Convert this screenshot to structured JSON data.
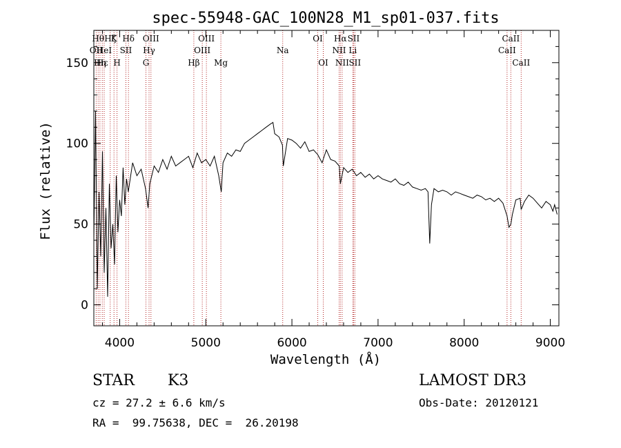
{
  "chart_data": {
    "type": "line",
    "title": "spec-55948-GAC_100N28_M1_sp01-037.fits",
    "xlabel": "Wavelength (Å)",
    "ylabel": "Flux (relative)",
    "xlim": [
      3700,
      9100
    ],
    "ylim": [
      -13,
      170
    ],
    "x_ticks": [
      4000,
      5000,
      6000,
      7000,
      8000,
      9000
    ],
    "y_ticks": [
      0,
      50,
      100,
      150
    ],
    "y_tick_labels": [
      "0",
      "50",
      "100",
      "150"
    ],
    "x_tick_labels": [
      "4000",
      "5000",
      "6000",
      "7000",
      "8000",
      "9000"
    ],
    "line_color": "#000000",
    "marker_color": "#b22222",
    "spectrum": {
      "name": "flux",
      "x": [
        3700,
        3720,
        3740,
        3760,
        3780,
        3800,
        3820,
        3840,
        3860,
        3880,
        3900,
        3920,
        3940,
        3960,
        3980,
        4000,
        4020,
        4040,
        4060,
        4080,
        4100,
        4150,
        4200,
        4250,
        4300,
        4330,
        4350,
        4400,
        4450,
        4500,
        4550,
        4600,
        4650,
        4700,
        4750,
        4800,
        4850,
        4900,
        4950,
        5000,
        5050,
        5100,
        5150,
        5180,
        5200,
        5250,
        5300,
        5350,
        5400,
        5450,
        5500,
        5550,
        5600,
        5650,
        5700,
        5750,
        5780,
        5800,
        5850,
        5890,
        5900,
        5950,
        6000,
        6050,
        6100,
        6150,
        6200,
        6250,
        6300,
        6350,
        6400,
        6450,
        6500,
        6550,
        6563,
        6600,
        6650,
        6700,
        6750,
        6800,
        6850,
        6900,
        6950,
        7000,
        7050,
        7100,
        7150,
        7200,
        7250,
        7300,
        7350,
        7400,
        7450,
        7500,
        7550,
        7580,
        7600,
        7620,
        7650,
        7700,
        7750,
        7800,
        7850,
        7900,
        7950,
        8000,
        8050,
        8100,
        8150,
        8200,
        8250,
        8300,
        8350,
        8400,
        8450,
        8498,
        8520,
        8542,
        8560,
        8600,
        8650,
        8662,
        8700,
        8750,
        8800,
        8850,
        8900,
        8950,
        9000,
        9030,
        9050,
        9080
      ],
      "values": [
        40,
        120,
        10,
        70,
        30,
        95,
        20,
        60,
        5,
        75,
        35,
        50,
        25,
        80,
        45,
        65,
        55,
        85,
        62,
        78,
        70,
        88,
        80,
        84,
        72,
        60,
        75,
        86,
        82,
        90,
        84,
        92,
        86,
        88,
        90,
        92,
        85,
        94,
        88,
        90,
        86,
        92,
        80,
        70,
        88,
        94,
        92,
        96,
        95,
        100,
        102,
        104,
        106,
        108,
        110,
        112,
        113,
        106,
        104,
        99,
        86,
        103,
        102,
        100,
        97,
        101,
        95,
        96,
        93,
        88,
        96,
        90,
        89,
        86,
        75,
        85,
        82,
        84,
        80,
        82,
        79,
        81,
        78,
        80,
        78,
        77,
        76,
        78,
        75,
        74,
        76,
        73,
        72,
        71,
        72,
        70,
        38,
        62,
        72,
        70,
        71,
        70,
        68,
        70,
        69,
        68,
        67,
        66,
        68,
        67,
        65,
        66,
        64,
        66,
        63,
        55,
        48,
        50,
        56,
        65,
        66,
        59,
        64,
        68,
        66,
        63,
        60,
        64,
        62,
        58,
        62,
        56
      ]
    },
    "line_markers": [
      {
        "wl": 3727,
        "label": "OII",
        "row": 2
      },
      {
        "wl": 3750,
        "label": "Hθ",
        "row": 1
      },
      {
        "wl": 3771,
        "label": "Hη",
        "row": 3
      },
      {
        "wl": 3798,
        "label": "Hε",
        "row": 3
      },
      {
        "wl": 3820,
        "label": "HeI",
        "row": 2
      },
      {
        "wl": 3890,
        "label": "Hζ",
        "row": 1
      },
      {
        "wl": 3934,
        "label": "K",
        "row": 1
      },
      {
        "wl": 3969,
        "label": "H",
        "row": 3
      },
      {
        "wl": 4072,
        "label": "SII",
        "row": 2
      },
      {
        "wl": 4102,
        "label": "Hδ",
        "row": 1
      },
      {
        "wl": 4305,
        "label": "G",
        "row": 3
      },
      {
        "wl": 4341,
        "label": "Hγ",
        "row": 2
      },
      {
        "wl": 4363,
        "label": "OIII",
        "row": 1
      },
      {
        "wl": 4861,
        "label": "Hβ",
        "row": 3
      },
      {
        "wl": 4959,
        "label": "OIII",
        "row": 2
      },
      {
        "wl": 5007,
        "label": "OIII",
        "row": 1
      },
      {
        "wl": 5175,
        "label": "Mg",
        "row": 3
      },
      {
        "wl": 5893,
        "label": "Na",
        "row": 2
      },
      {
        "wl": 6300,
        "label": "OI",
        "row": 1
      },
      {
        "wl": 6364,
        "label": "OI",
        "row": 3
      },
      {
        "wl": 6548,
        "label": "NII",
        "row": 2
      },
      {
        "wl": 6563,
        "label": "Hα",
        "row": 1
      },
      {
        "wl": 6583,
        "label": "NII",
        "row": 3
      },
      {
        "wl": 6707,
        "label": "Li",
        "row": 2
      },
      {
        "wl": 6716,
        "label": "SII",
        "row": 1
      },
      {
        "wl": 6731,
        "label": "SII",
        "row": 3
      },
      {
        "wl": 8498,
        "label": "CaII",
        "row": 2
      },
      {
        "wl": 8542,
        "label": "CaII",
        "row": 1
      },
      {
        "wl": 8662,
        "label": "CaII",
        "row": 3
      }
    ]
  },
  "info": {
    "class_label": "STAR",
    "subclass": "K3",
    "survey": "LAMOST DR3",
    "cz": "cz = 27.2 ± 6.6 km/s",
    "obs_date": "Obs-Date: 20120121",
    "coords": "RA =  99.75638, DEC =  26.20198"
  }
}
